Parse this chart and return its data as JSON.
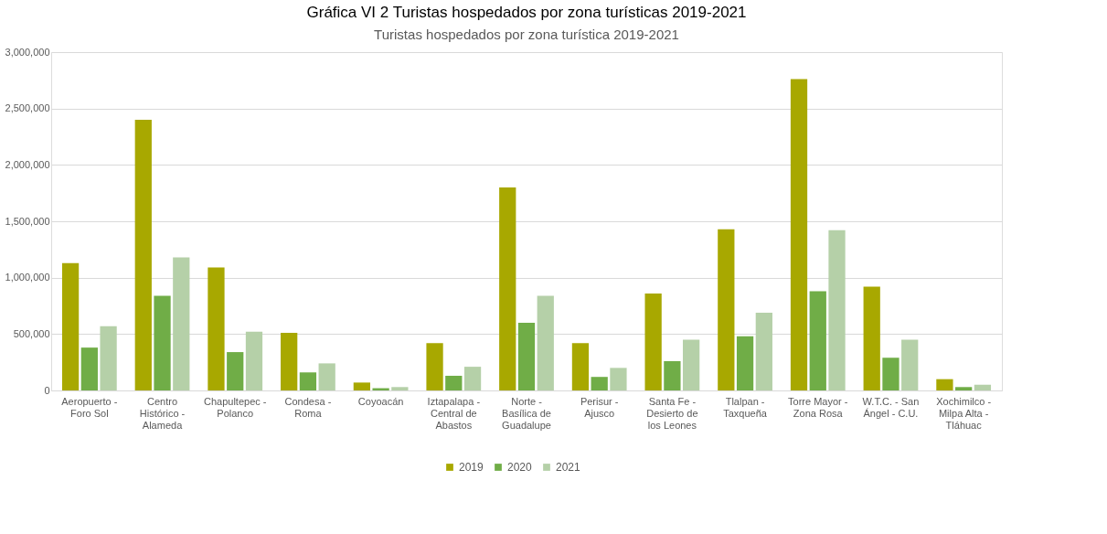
{
  "chart_data": {
    "type": "bar",
    "title": "Gráfica VI 2 Turistas hospedados por zona turísticas 2019-2021",
    "subtitle": "Turistas hospedados por zona turística 2019-2021",
    "categories": [
      "Aeropuerto - Foro Sol",
      "Centro Histórico - Alameda",
      "Chapultepec - Polanco",
      "Condesa - Roma",
      "Coyoacán",
      "Iztapalapa - Central de Abastos",
      "Norte - Basílica de Guadalupe",
      "Perisur - Ajusco",
      "Santa Fe - Desierto de los Leones",
      "Tlalpan - Taxqueña",
      "Torre Mayor - Zona Rosa",
      "W.T.C. - San Ángel - C.U.",
      "Xochimilco - Milpa Alta - Tláhuac"
    ],
    "series": [
      {
        "name": "2019",
        "color": "#a8a800",
        "values": [
          1130000,
          2400000,
          1090000,
          510000,
          70000,
          420000,
          1800000,
          420000,
          860000,
          1430000,
          2760000,
          920000,
          100000
        ]
      },
      {
        "name": "2020",
        "color": "#70ad47",
        "values": [
          380000,
          840000,
          340000,
          160000,
          20000,
          130000,
          600000,
          120000,
          260000,
          480000,
          880000,
          290000,
          30000
        ]
      },
      {
        "name": "2021",
        "color": "#b5d0a8",
        "values": [
          570000,
          1180000,
          520000,
          240000,
          30000,
          210000,
          840000,
          200000,
          450000,
          690000,
          1420000,
          450000,
          50000
        ]
      }
    ],
    "ylim": [
      0,
      3000000
    ],
    "yticks": [
      0,
      {
        "value": 500000,
        "label": "500,000"
      },
      {
        "value": 1000000,
        "label": "1,000,000"
      },
      {
        "value": 1500000,
        "label": "1,500,000"
      },
      {
        "value": 2000000,
        "label": "2,000,000"
      },
      {
        "value": 2500000,
        "label": "2,500,000"
      },
      {
        "value": 3000000,
        "label": "3,000,000"
      }
    ],
    "grid": "y",
    "legend": "bottom"
  }
}
